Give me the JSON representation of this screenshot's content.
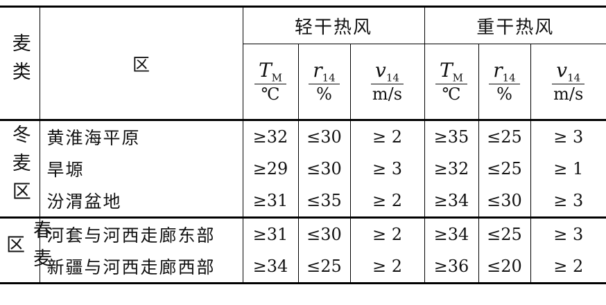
{
  "header": {
    "wheat_type": "麦类",
    "region": "区",
    "groups": [
      "轻干热风",
      "重干热风"
    ],
    "sub_columns": [
      {
        "symbol": "T",
        "subscript": "M",
        "unit": "℃"
      },
      {
        "symbol": "r",
        "subscript": "14",
        "unit": "%"
      },
      {
        "symbol": "v",
        "subscript": "14",
        "unit": "m/s"
      },
      {
        "symbol": "T",
        "subscript": "M",
        "unit": "℃"
      },
      {
        "symbol": "r",
        "subscript": "14",
        "unit": "%"
      },
      {
        "symbol": "v",
        "subscript": "14",
        "unit": "m/s"
      }
    ]
  },
  "sections": [
    {
      "name": "冬麦区",
      "rows": [
        {
          "region": "黄淮海平原",
          "values": [
            "≥32",
            "≤30",
            "≥ 2",
            "≥35",
            "≤25",
            "≥ 3"
          ]
        },
        {
          "region": "旱塬",
          "values": [
            "≥29",
            "≤30",
            "≥ 3",
            "≥32",
            "≤25",
            "≥ 1"
          ]
        },
        {
          "region": "汾渭盆地",
          "values": [
            "≥31",
            "≤35",
            "≥ 2",
            "≥34",
            "≤30",
            "≥ 3"
          ]
        }
      ]
    },
    {
      "name": "春麦区",
      "rows": [
        {
          "region": "河套与河西走廊东部",
          "values": [
            "≥31",
            "≤30",
            "≥ 2",
            "≥34",
            "≤25",
            "≥ 3"
          ]
        },
        {
          "region": "新疆与河西走廊西部",
          "values": [
            "≥34",
            "≤25",
            "≥ 2",
            "≥36",
            "≤20",
            "≥ 2"
          ]
        }
      ]
    }
  ]
}
